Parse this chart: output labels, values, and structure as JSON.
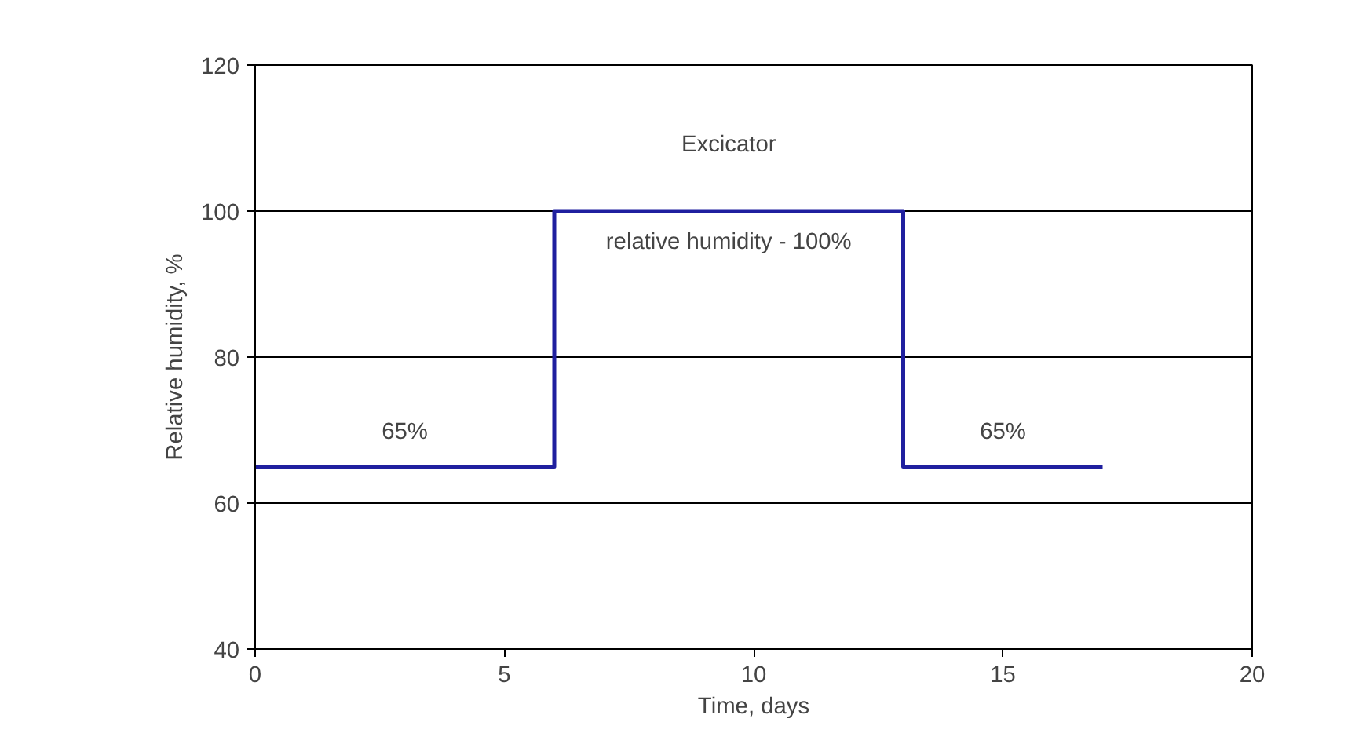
{
  "chart_data": {
    "type": "line",
    "xlabel": "Time, days",
    "ylabel": "Relative humidity, %",
    "series": [
      {
        "color": "#1f1f9f",
        "x": [
          0,
          6,
          6,
          13,
          13,
          17
        ],
        "values": [
          65,
          65,
          100,
          100,
          65,
          65
        ]
      }
    ],
    "xlim": [
      0,
      20
    ],
    "xticks": [
      0,
      5,
      10,
      15,
      20
    ],
    "ylim": [
      40,
      120
    ],
    "yticks": [
      40,
      60,
      80,
      100,
      120
    ],
    "grid": "y",
    "marker": "none",
    "line_style": "solid",
    "annotations": [
      "Excicator",
      "relative humidity - 100%",
      "65%",
      "65%"
    ]
  }
}
